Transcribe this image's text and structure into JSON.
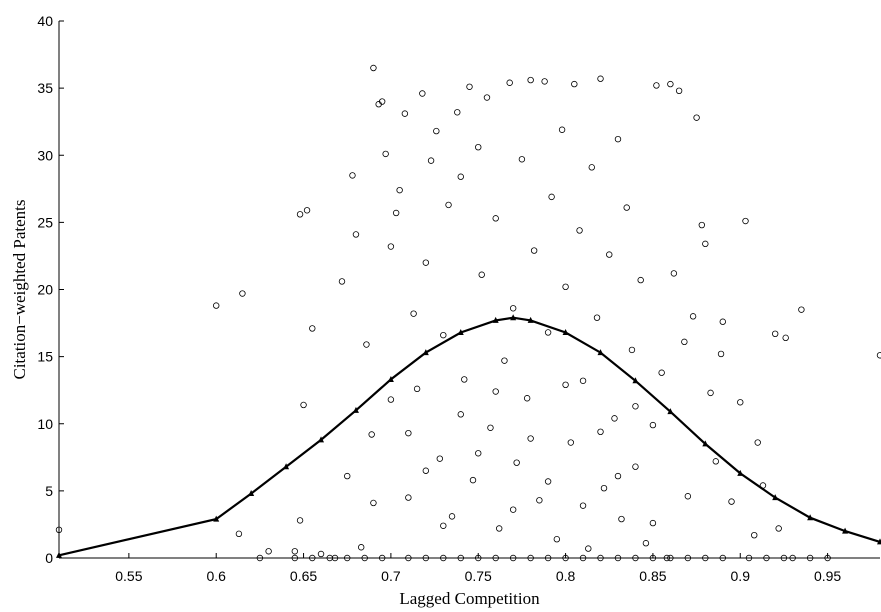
{
  "chart_data": {
    "type": "scatter",
    "title": "",
    "xlabel": "Lagged Competition",
    "ylabel": "Citation−weighted Patents",
    "xlim": [
      0.51,
      0.98
    ],
    "ylim": [
      0,
      40
    ],
    "xticks": [
      0.55,
      0.6,
      0.65,
      0.7,
      0.75,
      0.8,
      0.85,
      0.9,
      0.95
    ],
    "xtick_labels": [
      "0.55",
      "0.6",
      "0.65",
      "0.7",
      "0.75",
      "0.8",
      "0.85",
      "0.9",
      "0.95"
    ],
    "yticks": [
      0,
      5,
      10,
      15,
      20,
      25,
      30,
      35,
      40
    ],
    "ytick_labels": [
      "0",
      "5",
      "10",
      "15",
      "20",
      "25",
      "30",
      "35",
      "40"
    ],
    "grid": false,
    "legend": "none",
    "series": [
      {
        "kind": "points",
        "marker": "open-circle",
        "color": "#000000",
        "points": [
          [
            0.51,
            2.1
          ],
          [
            0.6,
            18.8
          ],
          [
            0.615,
            19.7
          ],
          [
            0.613,
            1.8
          ],
          [
            0.625,
            0
          ],
          [
            0.63,
            0.5
          ],
          [
            0.645,
            0.5
          ],
          [
            0.648,
            25.6
          ],
          [
            0.652,
            25.9
          ],
          [
            0.65,
            11.4
          ],
          [
            0.655,
            17.1
          ],
          [
            0.648,
            2.8
          ],
          [
            0.66,
            0.3
          ],
          [
            0.668,
            0
          ],
          [
            0.672,
            20.6
          ],
          [
            0.675,
            6.1
          ],
          [
            0.678,
            28.5
          ],
          [
            0.68,
            24.1
          ],
          [
            0.683,
            0.8
          ],
          [
            0.686,
            15.9
          ],
          [
            0.689,
            9.2
          ],
          [
            0.69,
            36.5
          ],
          [
            0.693,
            33.8
          ],
          [
            0.695,
            34
          ],
          [
            0.697,
            30.1
          ],
          [
            0.7,
            23.2
          ],
          [
            0.703,
            25.7
          ],
          [
            0.705,
            27.4
          ],
          [
            0.708,
            33.1
          ],
          [
            0.71,
            4.5
          ],
          [
            0.713,
            18.2
          ],
          [
            0.715,
            12.6
          ],
          [
            0.718,
            34.6
          ],
          [
            0.72,
            22
          ],
          [
            0.723,
            29.6
          ],
          [
            0.726,
            31.8
          ],
          [
            0.728,
            7.4
          ],
          [
            0.73,
            16.6
          ],
          [
            0.733,
            26.3
          ],
          [
            0.735,
            3.1
          ],
          [
            0.738,
            33.2
          ],
          [
            0.74,
            28.4
          ],
          [
            0.742,
            13.3
          ],
          [
            0.745,
            35.1
          ],
          [
            0.747,
            5.8
          ],
          [
            0.75,
            30.6
          ],
          [
            0.752,
            21.1
          ],
          [
            0.755,
            34.3
          ],
          [
            0.757,
            9.7
          ],
          [
            0.76,
            25.3
          ],
          [
            0.762,
            2.2
          ],
          [
            0.765,
            14.7
          ],
          [
            0.768,
            35.4
          ],
          [
            0.77,
            18.6
          ],
          [
            0.772,
            7.1
          ],
          [
            0.775,
            29.7
          ],
          [
            0.778,
            11.9
          ],
          [
            0.78,
            35.6
          ],
          [
            0.782,
            22.9
          ],
          [
            0.785,
            4.3
          ],
          [
            0.788,
            35.5
          ],
          [
            0.79,
            16.8
          ],
          [
            0.792,
            26.9
          ],
          [
            0.795,
            1.4
          ],
          [
            0.798,
            31.9
          ],
          [
            0.8,
            20.2
          ],
          [
            0.803,
            8.6
          ],
          [
            0.805,
            35.3
          ],
          [
            0.808,
            24.4
          ],
          [
            0.81,
            13.2
          ],
          [
            0.813,
            0.7
          ],
          [
            0.815,
            29.1
          ],
          [
            0.818,
            17.9
          ],
          [
            0.82,
            35.7
          ],
          [
            0.822,
            5.2
          ],
          [
            0.825,
            22.6
          ],
          [
            0.828,
            10.4
          ],
          [
            0.83,
            31.2
          ],
          [
            0.832,
            2.9
          ],
          [
            0.835,
            26.1
          ],
          [
            0.838,
            15.5
          ],
          [
            0.84,
            6.8
          ],
          [
            0.843,
            20.7
          ],
          [
            0.846,
            1.1
          ],
          [
            0.85,
            9.9
          ],
          [
            0.852,
            35.2
          ],
          [
            0.855,
            13.8
          ],
          [
            0.858,
            0
          ],
          [
            0.86,
            35.3
          ],
          [
            0.862,
            21.2
          ],
          [
            0.865,
            34.8
          ],
          [
            0.868,
            16.1
          ],
          [
            0.87,
            4.6
          ],
          [
            0.873,
            18
          ],
          [
            0.875,
            32.8
          ],
          [
            0.878,
            24.8
          ],
          [
            0.88,
            23.4
          ],
          [
            0.883,
            12.3
          ],
          [
            0.886,
            7.2
          ],
          [
            0.889,
            15.2
          ],
          [
            0.89,
            17.6
          ],
          [
            0.895,
            4.2
          ],
          [
            0.9,
            11.6
          ],
          [
            0.903,
            25.1
          ],
          [
            0.908,
            1.7
          ],
          [
            0.91,
            8.6
          ],
          [
            0.913,
            5.4
          ],
          [
            0.92,
            16.7
          ],
          [
            0.922,
            2.2
          ],
          [
            0.926,
            16.4
          ],
          [
            0.93,
            0
          ],
          [
            0.935,
            18.5
          ],
          [
            0.94,
            0
          ],
          [
            0.95,
            0
          ],
          [
            0.98,
            15.1
          ],
          [
            0.69,
            4.1
          ],
          [
            0.7,
            11.8
          ],
          [
            0.71,
            9.3
          ],
          [
            0.72,
            6.5
          ],
          [
            0.73,
            2.4
          ],
          [
            0.74,
            10.7
          ],
          [
            0.75,
            7.8
          ],
          [
            0.76,
            12.4
          ],
          [
            0.77,
            3.6
          ],
          [
            0.78,
            8.9
          ],
          [
            0.79,
            5.7
          ],
          [
            0.8,
            12.9
          ],
          [
            0.81,
            3.9
          ],
          [
            0.82,
            9.4
          ],
          [
            0.83,
            6.1
          ],
          [
            0.84,
            11.3
          ],
          [
            0.85,
            2.6
          ],
          [
            0.71,
            0
          ],
          [
            0.72,
            0
          ],
          [
            0.73,
            0
          ],
          [
            0.74,
            0
          ],
          [
            0.75,
            0
          ],
          [
            0.76,
            0
          ],
          [
            0.77,
            0
          ],
          [
            0.78,
            0
          ],
          [
            0.79,
            0
          ],
          [
            0.8,
            0
          ],
          [
            0.81,
            0
          ],
          [
            0.82,
            0
          ],
          [
            0.83,
            0
          ],
          [
            0.84,
            0
          ],
          [
            0.85,
            0
          ],
          [
            0.86,
            0
          ],
          [
            0.87,
            0
          ],
          [
            0.88,
            0
          ],
          [
            0.89,
            0
          ],
          [
            0.905,
            0
          ],
          [
            0.915,
            0
          ],
          [
            0.925,
            0
          ],
          [
            0.695,
            0
          ],
          [
            0.685,
            0
          ],
          [
            0.675,
            0
          ],
          [
            0.665,
            0
          ],
          [
            0.655,
            0
          ],
          [
            0.645,
            0
          ]
        ]
      },
      {
        "kind": "fitted-curve",
        "marker": "filled-triangle",
        "color": "#000000",
        "x": [
          0.51,
          0.6,
          0.62,
          0.64,
          0.66,
          0.68,
          0.7,
          0.72,
          0.74,
          0.76,
          0.77,
          0.78,
          0.8,
          0.82,
          0.84,
          0.86,
          0.88,
          0.9,
          0.92,
          0.94,
          0.96,
          0.98
        ],
        "y": [
          0.2,
          2.9,
          4.8,
          6.8,
          8.8,
          11.0,
          13.3,
          15.3,
          16.8,
          17.7,
          17.9,
          17.7,
          16.8,
          15.3,
          13.2,
          10.9,
          8.5,
          6.3,
          4.5,
          3.0,
          2.0,
          1.2
        ]
      }
    ]
  }
}
